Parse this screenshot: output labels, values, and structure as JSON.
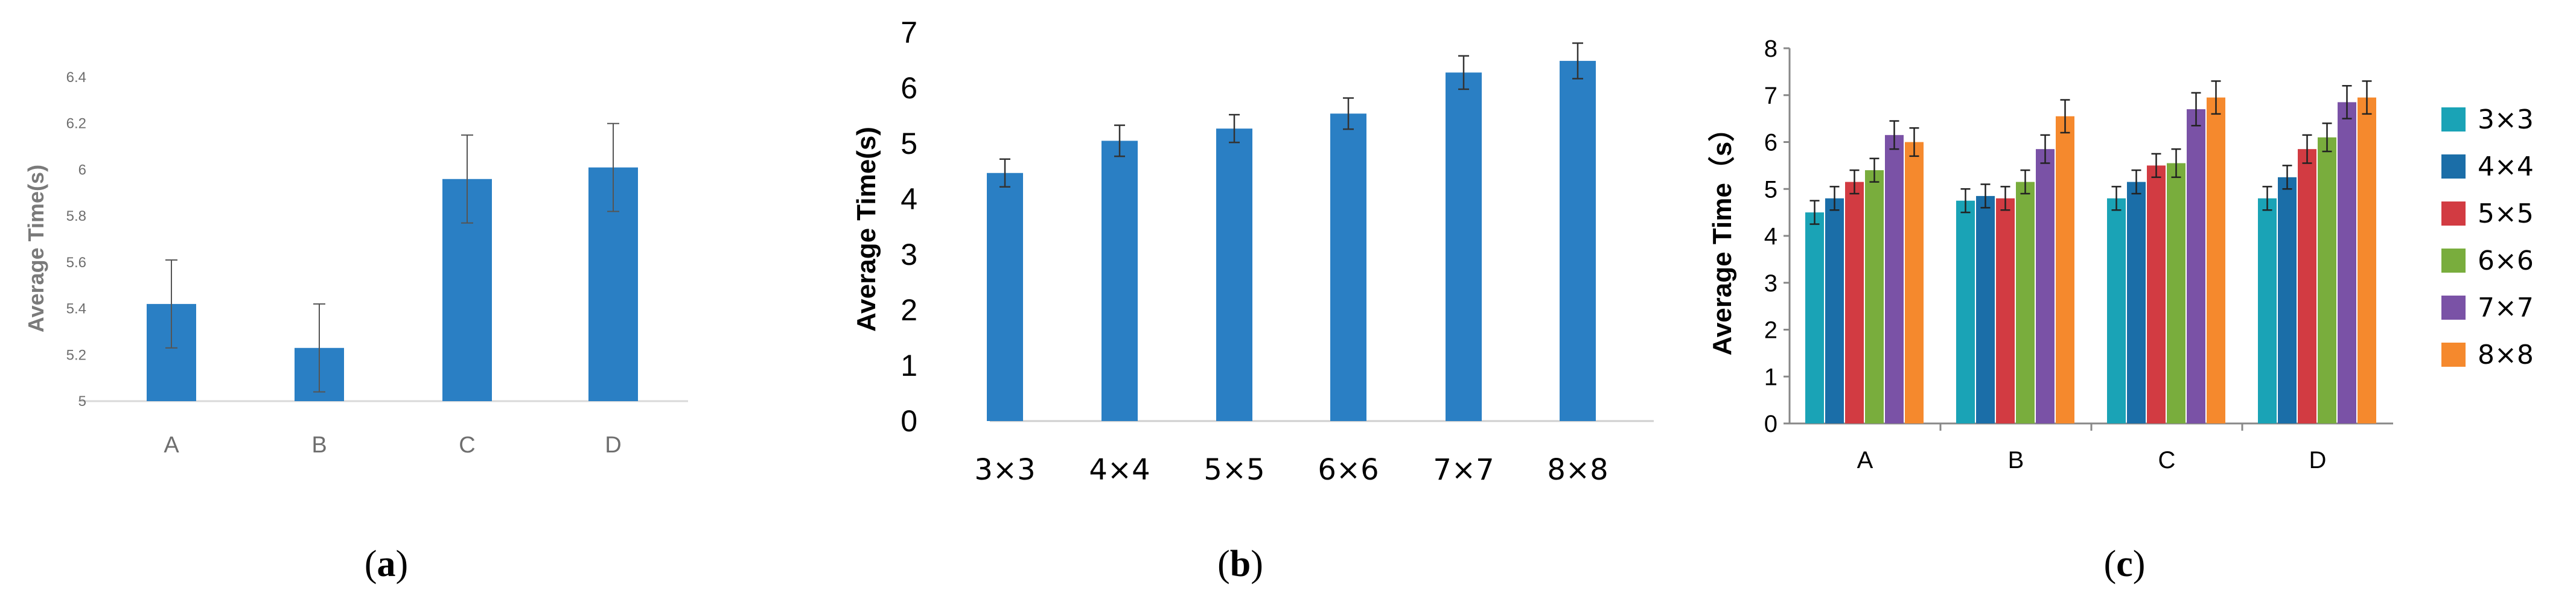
{
  "chart_data": [
    {
      "type": "bar",
      "panel": "a",
      "categories": [
        "A",
        "B",
        "C",
        "D"
      ],
      "values": [
        5.42,
        5.23,
        5.96,
        6.01
      ],
      "errors": [
        0.19,
        0.19,
        0.19,
        0.19
      ],
      "ylabel": "Average Time(s)",
      "ylim": [
        5,
        6.4
      ],
      "yticks": [
        "5",
        "5.2",
        "5.4",
        "5.6",
        "5.8",
        "6",
        "6.2",
        "6.4"
      ],
      "color": "#2a7fc4",
      "grid": false
    },
    {
      "type": "bar",
      "panel": "b",
      "categories": [
        "3×3",
        "4×4",
        "5×5",
        "6×6",
        "7×7",
        "8×8"
      ],
      "values": [
        4.47,
        5.05,
        5.27,
        5.54,
        6.28,
        6.49
      ],
      "errors": [
        0.25,
        0.28,
        0.25,
        0.28,
        0.3,
        0.32
      ],
      "ylabel": "Average Time(s)",
      "ylim": [
        0,
        7
      ],
      "yticks": [
        "0",
        "1",
        "2",
        "3",
        "4",
        "5",
        "6",
        "7"
      ],
      "color": "#2a7fc4",
      "grid": false
    },
    {
      "type": "bar",
      "panel": "c",
      "categories": [
        "A",
        "B",
        "C",
        "D"
      ],
      "series": [
        {
          "name": "3×3",
          "values": [
            4.5,
            4.75,
            4.8,
            4.8
          ],
          "errors": [
            0.25,
            0.25,
            0.25,
            0.25
          ]
        },
        {
          "name": "4×4",
          "values": [
            4.8,
            4.85,
            5.15,
            5.25
          ],
          "errors": [
            0.25,
            0.25,
            0.25,
            0.25
          ]
        },
        {
          "name": "5×5",
          "values": [
            5.15,
            4.8,
            5.5,
            5.85
          ],
          "errors": [
            0.25,
            0.25,
            0.25,
            0.3
          ]
        },
        {
          "name": "6×6",
          "values": [
            5.4,
            5.15,
            5.55,
            6.1
          ],
          "errors": [
            0.25,
            0.25,
            0.3,
            0.3
          ]
        },
        {
          "name": "7×7",
          "values": [
            6.15,
            5.85,
            6.7,
            6.85
          ],
          "errors": [
            0.3,
            0.3,
            0.35,
            0.35
          ]
        },
        {
          "name": "8×8",
          "values": [
            6.0,
            6.55,
            6.95,
            6.95
          ],
          "errors": [
            0.3,
            0.35,
            0.35,
            0.35
          ]
        }
      ],
      "colors": [
        "#1aa3b6",
        "#1b6ea8",
        "#d23b42",
        "#79ad3d",
        "#7a52a6",
        "#f5892d"
      ],
      "ylabel": "Average Time（s）",
      "ylim": [
        0,
        8
      ],
      "yticks": [
        "0",
        "1",
        "2",
        "3",
        "4",
        "5",
        "6",
        "7",
        "8"
      ],
      "legend": "right",
      "grid": false
    }
  ],
  "captions": {
    "a": {
      "open": "(",
      "letter": "a",
      "close": ")"
    },
    "b": {
      "open": "(",
      "letter": "b",
      "close": ")"
    },
    "c": {
      "open": "(",
      "letter": "c",
      "close": ")"
    }
  }
}
